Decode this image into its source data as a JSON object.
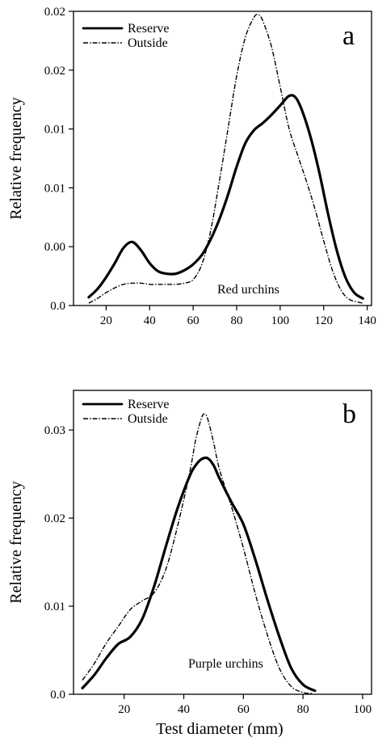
{
  "chart_data": [
    {
      "type": "line",
      "panel_label": "a",
      "annotation": "Red urchins",
      "xlabel": "",
      "ylabel": "Relative frequency",
      "xlim": [
        5,
        142
      ],
      "ylim": [
        0,
        0.025
      ],
      "x_ticks": [
        20,
        40,
        60,
        80,
        100,
        120,
        140
      ],
      "y_ticks": [
        {
          "value": 0,
          "label": "0.0"
        },
        {
          "value": 0.005,
          "label": "0.00"
        },
        {
          "value": 0.01,
          "label": "0.01"
        },
        {
          "value": 0.015,
          "label": "0.01"
        },
        {
          "value": 0.02,
          "label": "0.02"
        },
        {
          "value": 0.025,
          "label": "0.02"
        }
      ],
      "legend": {
        "position": "top-left"
      },
      "series": [
        {
          "name": "Reserve",
          "style": "solid",
          "x": [
            12,
            16,
            20,
            24,
            28,
            32,
            36,
            40,
            44,
            48,
            52,
            56,
            60,
            64,
            68,
            72,
            76,
            80,
            84,
            88,
            92,
            96,
            100,
            104,
            107,
            110,
            114,
            118,
            122,
            126,
            130,
            134,
            138
          ],
          "y": [
            0.0007,
            0.0014,
            0.0024,
            0.0036,
            0.0049,
            0.0054,
            0.0047,
            0.0036,
            0.0029,
            0.0027,
            0.0027,
            0.003,
            0.0035,
            0.0043,
            0.0056,
            0.0073,
            0.0094,
            0.0118,
            0.0138,
            0.0149,
            0.0155,
            0.0162,
            0.017,
            0.0178,
            0.0177,
            0.0166,
            0.0143,
            0.0113,
            0.0078,
            0.0047,
            0.0024,
            0.0011,
            0.0006
          ]
        },
        {
          "name": "Outside",
          "style": "dash-dot",
          "x": [
            12,
            16,
            20,
            24,
            28,
            32,
            36,
            40,
            44,
            48,
            52,
            56,
            60,
            64,
            68,
            72,
            76,
            80,
            84,
            88,
            90,
            92,
            96,
            100,
            104,
            108,
            112,
            116,
            120,
            124,
            128,
            132,
            138
          ],
          "y": [
            0.0002,
            0.0006,
            0.0011,
            0.0015,
            0.0018,
            0.0019,
            0.0019,
            0.0018,
            0.0018,
            0.0018,
            0.0018,
            0.0019,
            0.0022,
            0.0035,
            0.0063,
            0.0105,
            0.015,
            0.0195,
            0.0228,
            0.0245,
            0.0247,
            0.0242,
            0.022,
            0.0186,
            0.0151,
            0.0128,
            0.0106,
            0.0082,
            0.0055,
            0.003,
            0.0013,
            0.0005,
            0.0002
          ]
        }
      ]
    },
    {
      "type": "line",
      "panel_label": "b",
      "annotation": "Purple urchins",
      "xlabel": "Test diameter  (mm)",
      "ylabel": "Relative frequency",
      "xlim": [
        3,
        103
      ],
      "ylim": [
        0,
        0.0345
      ],
      "x_ticks": [
        20,
        40,
        60,
        80,
        100
      ],
      "y_ticks": [
        {
          "value": 0,
          "label": "0.0"
        },
        {
          "value": 0.01,
          "label": "0.01"
        },
        {
          "value": 0.02,
          "label": "0.02"
        },
        {
          "value": 0.03,
          "label": "0.03"
        }
      ],
      "legend": {
        "position": "top-left"
      },
      "series": [
        {
          "name": "Reserve",
          "style": "solid",
          "x": [
            6,
            10,
            14,
            18,
            22,
            26,
            30,
            34,
            38,
            42,
            44,
            46,
            48,
            50,
            52,
            56,
            60,
            64,
            68,
            72,
            76,
            80,
            84
          ],
          "y": [
            0.0007,
            0.0022,
            0.0041,
            0.0057,
            0.0065,
            0.0085,
            0.0122,
            0.0168,
            0.0212,
            0.0248,
            0.026,
            0.0267,
            0.0268,
            0.026,
            0.0245,
            0.0218,
            0.0193,
            0.0153,
            0.0108,
            0.0066,
            0.003,
            0.0011,
            0.0004
          ]
        },
        {
          "name": "Outside",
          "style": "dash-dot",
          "x": [
            6,
            10,
            14,
            18,
            22,
            26,
            30,
            34,
            38,
            42,
            44,
            46,
            47,
            48,
            50,
            52,
            56,
            60,
            64,
            68,
            72,
            76,
            80,
            83
          ],
          "y": [
            0.0016,
            0.0035,
            0.0058,
            0.0077,
            0.0096,
            0.0106,
            0.0115,
            0.0142,
            0.0192,
            0.0252,
            0.0289,
            0.0314,
            0.0318,
            0.0313,
            0.0286,
            0.0255,
            0.0213,
            0.0166,
            0.0114,
            0.0068,
            0.003,
            0.0009,
            0.0002,
            0.0001
          ]
        }
      ]
    }
  ]
}
